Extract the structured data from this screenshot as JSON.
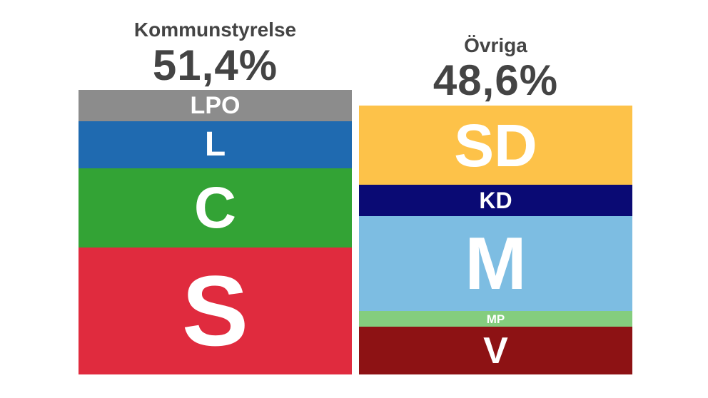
{
  "chart_data": {
    "type": "bar",
    "groups": [
      {
        "title": "Kommunstyrelse",
        "total": "51,4%",
        "segments": [
          {
            "party": "LPO",
            "color": "#8c8c8c"
          },
          {
            "party": "L",
            "color": "#1f6ab0"
          },
          {
            "party": "C",
            "color": "#33a335"
          },
          {
            "party": "S",
            "color": "#e02b3e"
          }
        ]
      },
      {
        "title": "Övriga",
        "total": "48,6%",
        "segments": [
          {
            "party": "SD",
            "color": "#fdc249"
          },
          {
            "party": "KD",
            "color": "#0a0a74"
          },
          {
            "party": "M",
            "color": "#7dbde2"
          },
          {
            "party": "MP",
            "color": "#84cd7e"
          },
          {
            "party": "V",
            "color": "#8d1214"
          }
        ]
      }
    ]
  }
}
